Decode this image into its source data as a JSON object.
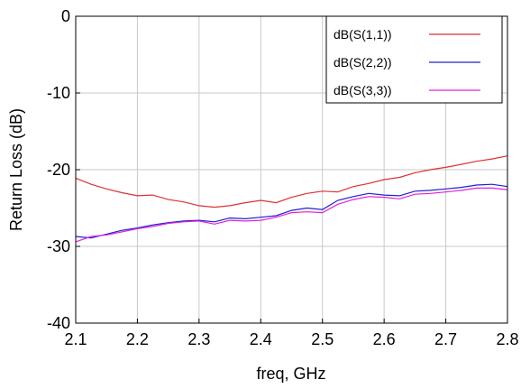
{
  "chart_data": {
    "type": "line",
    "xlabel": "freq, GHz",
    "ylabel": "Return Loss (dB)",
    "xlim": [
      2.1,
      2.8
    ],
    "ylim": [
      -40,
      0
    ],
    "x_ticks": [
      "2.1",
      "2.2",
      "2.3",
      "2.4",
      "2.5",
      "2.6",
      "2.7",
      "2.8"
    ],
    "x_tick_values": [
      2.1,
      2.2,
      2.3,
      2.4,
      2.5,
      2.6,
      2.7,
      2.8
    ],
    "y_ticks": [
      "0",
      "-10",
      "-20",
      "-30",
      "-40"
    ],
    "y_tick_values": [
      0,
      -10,
      -20,
      -30,
      -40
    ],
    "grid": true,
    "legend_position": "top-right",
    "series": [
      {
        "name": "dB(S(1,1))",
        "color": "#e03030",
        "x": [
          2.1,
          2.125,
          2.15,
          2.175,
          2.2,
          2.225,
          2.25,
          2.275,
          2.3,
          2.325,
          2.35,
          2.375,
          2.4,
          2.425,
          2.45,
          2.475,
          2.5,
          2.525,
          2.55,
          2.575,
          2.6,
          2.625,
          2.65,
          2.675,
          2.7,
          2.725,
          2.75,
          2.775,
          2.8
        ],
        "values": [
          -21.1,
          -21.9,
          -22.5,
          -23.0,
          -23.4,
          -23.3,
          -23.9,
          -24.2,
          -24.7,
          -24.9,
          -24.7,
          -24.3,
          -24.0,
          -24.3,
          -23.6,
          -23.1,
          -22.8,
          -22.9,
          -22.2,
          -21.8,
          -21.3,
          -21.0,
          -20.4,
          -20.0,
          -19.7,
          -19.3,
          -18.9,
          -18.6,
          -18.2
        ]
      },
      {
        "name": "dB(S(2,2))",
        "color": "#2020d0",
        "x": [
          2.1,
          2.125,
          2.15,
          2.175,
          2.2,
          2.225,
          2.25,
          2.275,
          2.3,
          2.325,
          2.35,
          2.375,
          2.4,
          2.425,
          2.45,
          2.475,
          2.5,
          2.525,
          2.55,
          2.575,
          2.6,
          2.625,
          2.65,
          2.675,
          2.7,
          2.725,
          2.75,
          2.775,
          2.8
        ],
        "values": [
          -28.7,
          -28.9,
          -28.4,
          -27.9,
          -27.6,
          -27.2,
          -26.9,
          -26.7,
          -26.6,
          -26.8,
          -26.3,
          -26.4,
          -26.2,
          -26.0,
          -25.3,
          -25.0,
          -25.2,
          -24.0,
          -23.5,
          -23.1,
          -23.3,
          -23.4,
          -22.8,
          -22.7,
          -22.5,
          -22.3,
          -22.0,
          -21.9,
          -22.2
        ]
      },
      {
        "name": "dB(S(3,3))",
        "color": "#e020e0",
        "x": [
          2.1,
          2.125,
          2.15,
          2.175,
          2.2,
          2.225,
          2.25,
          2.275,
          2.3,
          2.325,
          2.35,
          2.375,
          2.4,
          2.425,
          2.45,
          2.475,
          2.5,
          2.525,
          2.55,
          2.575,
          2.6,
          2.625,
          2.65,
          2.675,
          2.7,
          2.725,
          2.75,
          2.775,
          2.8
        ],
        "values": [
          -29.4,
          -28.7,
          -28.5,
          -28.1,
          -27.7,
          -27.4,
          -27.0,
          -26.8,
          -26.7,
          -27.1,
          -26.6,
          -26.7,
          -26.6,
          -26.2,
          -25.6,
          -25.5,
          -25.6,
          -24.5,
          -23.9,
          -23.5,
          -23.6,
          -23.8,
          -23.2,
          -23.1,
          -22.9,
          -22.7,
          -22.4,
          -22.4,
          -22.6
        ]
      }
    ]
  }
}
